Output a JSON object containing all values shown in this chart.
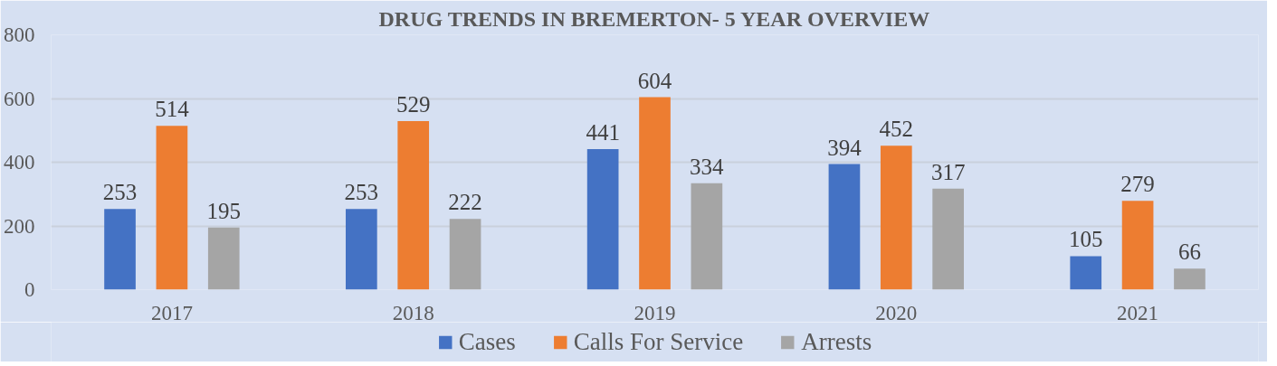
{
  "chart_data": {
    "type": "bar",
    "title": "DRUG TRENDS IN BREMERTON- 5 YEAR OVERVIEW",
    "categories": [
      "2017",
      "2018",
      "2019",
      "2020",
      "2021"
    ],
    "series": [
      {
        "name": "Cases",
        "color": "#4472c4",
        "values": [
          253,
          253,
          441,
          394,
          105
        ]
      },
      {
        "name": "Calls For Service",
        "color": "#ed7d31",
        "values": [
          514,
          529,
          604,
          452,
          279
        ]
      },
      {
        "name": "Arrests",
        "color": "#a5a5a5",
        "values": [
          195,
          222,
          334,
          317,
          66
        ]
      }
    ],
    "ylim": [
      0,
      800
    ],
    "yticks": [
      0,
      200,
      400,
      600,
      800
    ],
    "grid": "y",
    "legend": "bottom",
    "data_labels": true
  }
}
